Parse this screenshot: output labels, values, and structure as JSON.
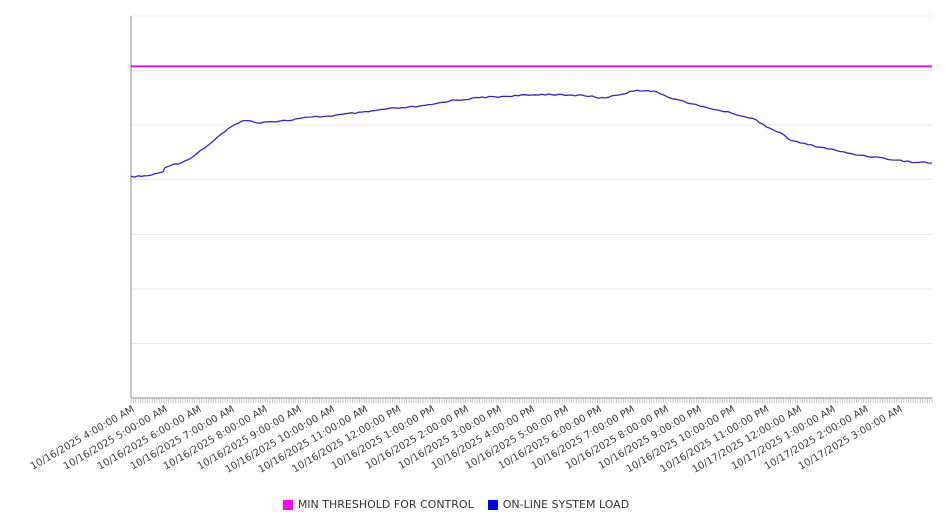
{
  "chart_data": {
    "type": "line",
    "title": "",
    "xlabel": "",
    "ylabel": "",
    "x_axis": {
      "kind": "time",
      "tick_interval": "1 hour",
      "minor_ticks": true,
      "tick_labels": [
        "10/16/2025 4:00:00 AM",
        "10/16/2025 5:00:00 AM",
        "10/16/2025 6:00:00 AM",
        "10/16/2025 7:00:00 AM",
        "10/16/2025 8:00:00 AM",
        "10/16/2025 9:00:00 AM",
        "10/16/2025 10:00:00 AM",
        "10/16/2025 11:00:00 AM",
        "10/16/2025 12:00:00 PM",
        "10/16/2025 1:00:00 PM",
        "10/16/2025 2:00:00 PM",
        "10/16/2025 3:00:00 PM",
        "10/16/2025 4:00:00 PM",
        "10/16/2025 5:00:00 PM",
        "10/16/2025 6:00:00 PM",
        "10/16/2025 7:00:00 PM",
        "10/16/2025 8:00:00 PM",
        "10/16/2025 9:00:00 PM",
        "10/16/2025 10:00:00 PM",
        "10/16/2025 11:00:00 PM",
        "10/17/2025 12:00:00 AM",
        "10/17/2025 1:00:00 AM",
        "10/17/2025 2:00:00 AM",
        "10/17/2025 3:00:00 AM"
      ],
      "range_hours": 24
    },
    "y_axis": {
      "labels_visible": false,
      "unit": "percent of plot height (axis unlabeled)",
      "ylim": [
        0,
        100
      ],
      "gridlines": 8,
      "grid": true
    },
    "legend_position": "bottom-center",
    "series": [
      {
        "name": "MIN THRESHOLD FOR CONTROL",
        "kind": "horizontal-threshold",
        "color": "#DE14DE",
        "swatch": "#FF00FF",
        "value": 86.8
      },
      {
        "name": "ON-LINE SYSTEM LOAD",
        "kind": "line",
        "color": "#2A2ABF",
        "swatch": "#0000EE",
        "points": [
          [
            0,
            57.9
          ],
          [
            0.21,
            58.0
          ],
          [
            0.51,
            58.2
          ],
          [
            0.81,
            58.8
          ],
          [
            0.96,
            59.2
          ],
          [
            1.02,
            60.5
          ],
          [
            1.17,
            60.9
          ],
          [
            1.41,
            61.4
          ],
          [
            1.65,
            62.2
          ],
          [
            1.86,
            63.2
          ],
          [
            2.07,
            64.7
          ],
          [
            2.28,
            66.0
          ],
          [
            2.49,
            67.4
          ],
          [
            2.7,
            69.0
          ],
          [
            2.91,
            70.3
          ],
          [
            3.12,
            71.6
          ],
          [
            3.3,
            72.5
          ],
          [
            3.48,
            72.6
          ],
          [
            3.66,
            72.3
          ],
          [
            3.87,
            72.1
          ],
          [
            4.1,
            72.4
          ],
          [
            4.34,
            72.4
          ],
          [
            4.58,
            72.6
          ],
          [
            4.82,
            72.8
          ],
          [
            5.06,
            73.2
          ],
          [
            5.3,
            73.4
          ],
          [
            5.54,
            73.6
          ],
          [
            5.78,
            73.7
          ],
          [
            6.02,
            73.9
          ],
          [
            6.32,
            74.2
          ],
          [
            6.62,
            74.5
          ],
          [
            6.92,
            74.7
          ],
          [
            7.22,
            75.1
          ],
          [
            7.52,
            75.5
          ],
          [
            7.82,
            75.8
          ],
          [
            8.12,
            75.9
          ],
          [
            8.42,
            76.2
          ],
          [
            8.72,
            76.4
          ],
          [
            9.02,
            76.8
          ],
          [
            9.32,
            77.4
          ],
          [
            9.62,
            77.9
          ],
          [
            9.92,
            78.1
          ],
          [
            10.22,
            78.4
          ],
          [
            10.52,
            78.7
          ],
          [
            10.82,
            78.8
          ],
          [
            11.12,
            78.9
          ],
          [
            11.41,
            79.1
          ],
          [
            11.71,
            79.2
          ],
          [
            12.01,
            79.3
          ],
          [
            12.31,
            79.5
          ],
          [
            12.61,
            79.5
          ],
          [
            12.91,
            79.3
          ],
          [
            13.21,
            79.2
          ],
          [
            13.51,
            79.3
          ],
          [
            13.81,
            78.9
          ],
          [
            14.11,
            78.5
          ],
          [
            14.41,
            79.0
          ],
          [
            14.71,
            79.6
          ],
          [
            14.95,
            80.1
          ],
          [
            15.16,
            80.7
          ],
          [
            15.34,
            80.4
          ],
          [
            15.49,
            80.5
          ],
          [
            15.67,
            80.2
          ],
          [
            15.85,
            79.7
          ],
          [
            16.09,
            78.9
          ],
          [
            16.33,
            78.2
          ],
          [
            16.57,
            77.6
          ],
          [
            16.81,
            77.0
          ],
          [
            17.05,
            76.4
          ],
          [
            17.29,
            75.9
          ],
          [
            17.53,
            75.5
          ],
          [
            17.77,
            75.0
          ],
          [
            18.01,
            74.6
          ],
          [
            18.25,
            74.0
          ],
          [
            18.49,
            73.4
          ],
          [
            18.73,
            72.8
          ],
          [
            18.94,
            71.6
          ],
          [
            19.15,
            70.6
          ],
          [
            19.36,
            69.8
          ],
          [
            19.57,
            68.7
          ],
          [
            19.78,
            67.5
          ],
          [
            19.96,
            67.0
          ],
          [
            20.16,
            66.6
          ],
          [
            20.4,
            66.1
          ],
          [
            20.64,
            65.7
          ],
          [
            20.88,
            65.3
          ],
          [
            21.12,
            64.8
          ],
          [
            21.36,
            64.3
          ],
          [
            21.6,
            63.9
          ],
          [
            21.84,
            63.6
          ],
          [
            22.08,
            63.3
          ],
          [
            22.32,
            63.1
          ],
          [
            22.56,
            62.7
          ],
          [
            22.8,
            62.4
          ],
          [
            23.04,
            62.2
          ],
          [
            23.28,
            61.9
          ],
          [
            23.52,
            61.6
          ],
          [
            23.7,
            61.8
          ],
          [
            23.88,
            61.6
          ],
          [
            24,
            61.5
          ]
        ]
      }
    ]
  },
  "legend": {
    "items": [
      {
        "label": "MIN THRESHOLD FOR CONTROL"
      },
      {
        "label": "ON-LINE SYSTEM LOAD"
      }
    ]
  }
}
